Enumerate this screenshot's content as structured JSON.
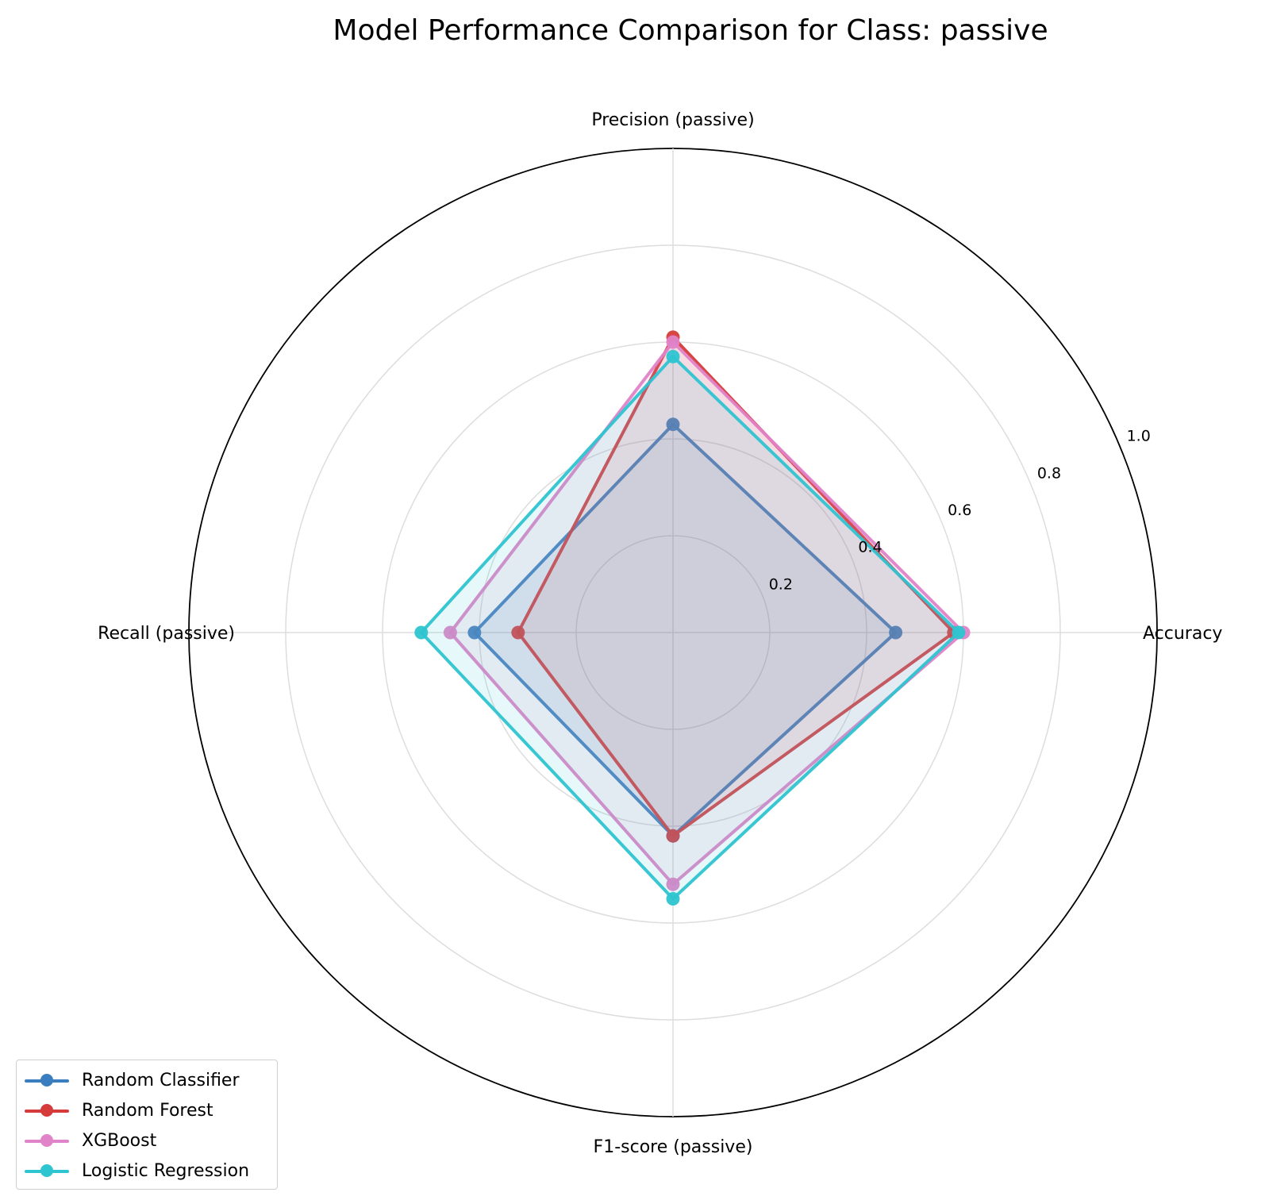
{
  "chart_data": {
    "type": "radar",
    "title": "Model Performance Comparison for Class: passive",
    "axes": [
      "Accuracy",
      "Precision (passive)",
      "Recall (passive)",
      "F1-score (passive)"
    ],
    "rlim": [
      0,
      1.0
    ],
    "rticks": [
      0.2,
      0.4,
      0.6,
      0.8,
      1.0
    ],
    "rtick_labels": [
      "0.2",
      "0.4",
      "0.6",
      "0.8",
      "1.0"
    ],
    "grid": true,
    "legend_position": "bottom-left",
    "series": [
      {
        "name": "Random Classifier",
        "color": "#3a7ebf",
        "values": [
          0.46,
          0.43,
          0.41,
          0.42
        ]
      },
      {
        "name": "Random Forest",
        "color": "#d63b3b",
        "values": [
          0.58,
          0.61,
          0.32,
          0.42
        ]
      },
      {
        "name": "XGBoost",
        "color": "#e083c8",
        "values": [
          0.6,
          0.6,
          0.46,
          0.52
        ]
      },
      {
        "name": "Logistic Regression",
        "color": "#2ec4d0",
        "values": [
          0.59,
          0.57,
          0.52,
          0.55
        ]
      }
    ]
  }
}
